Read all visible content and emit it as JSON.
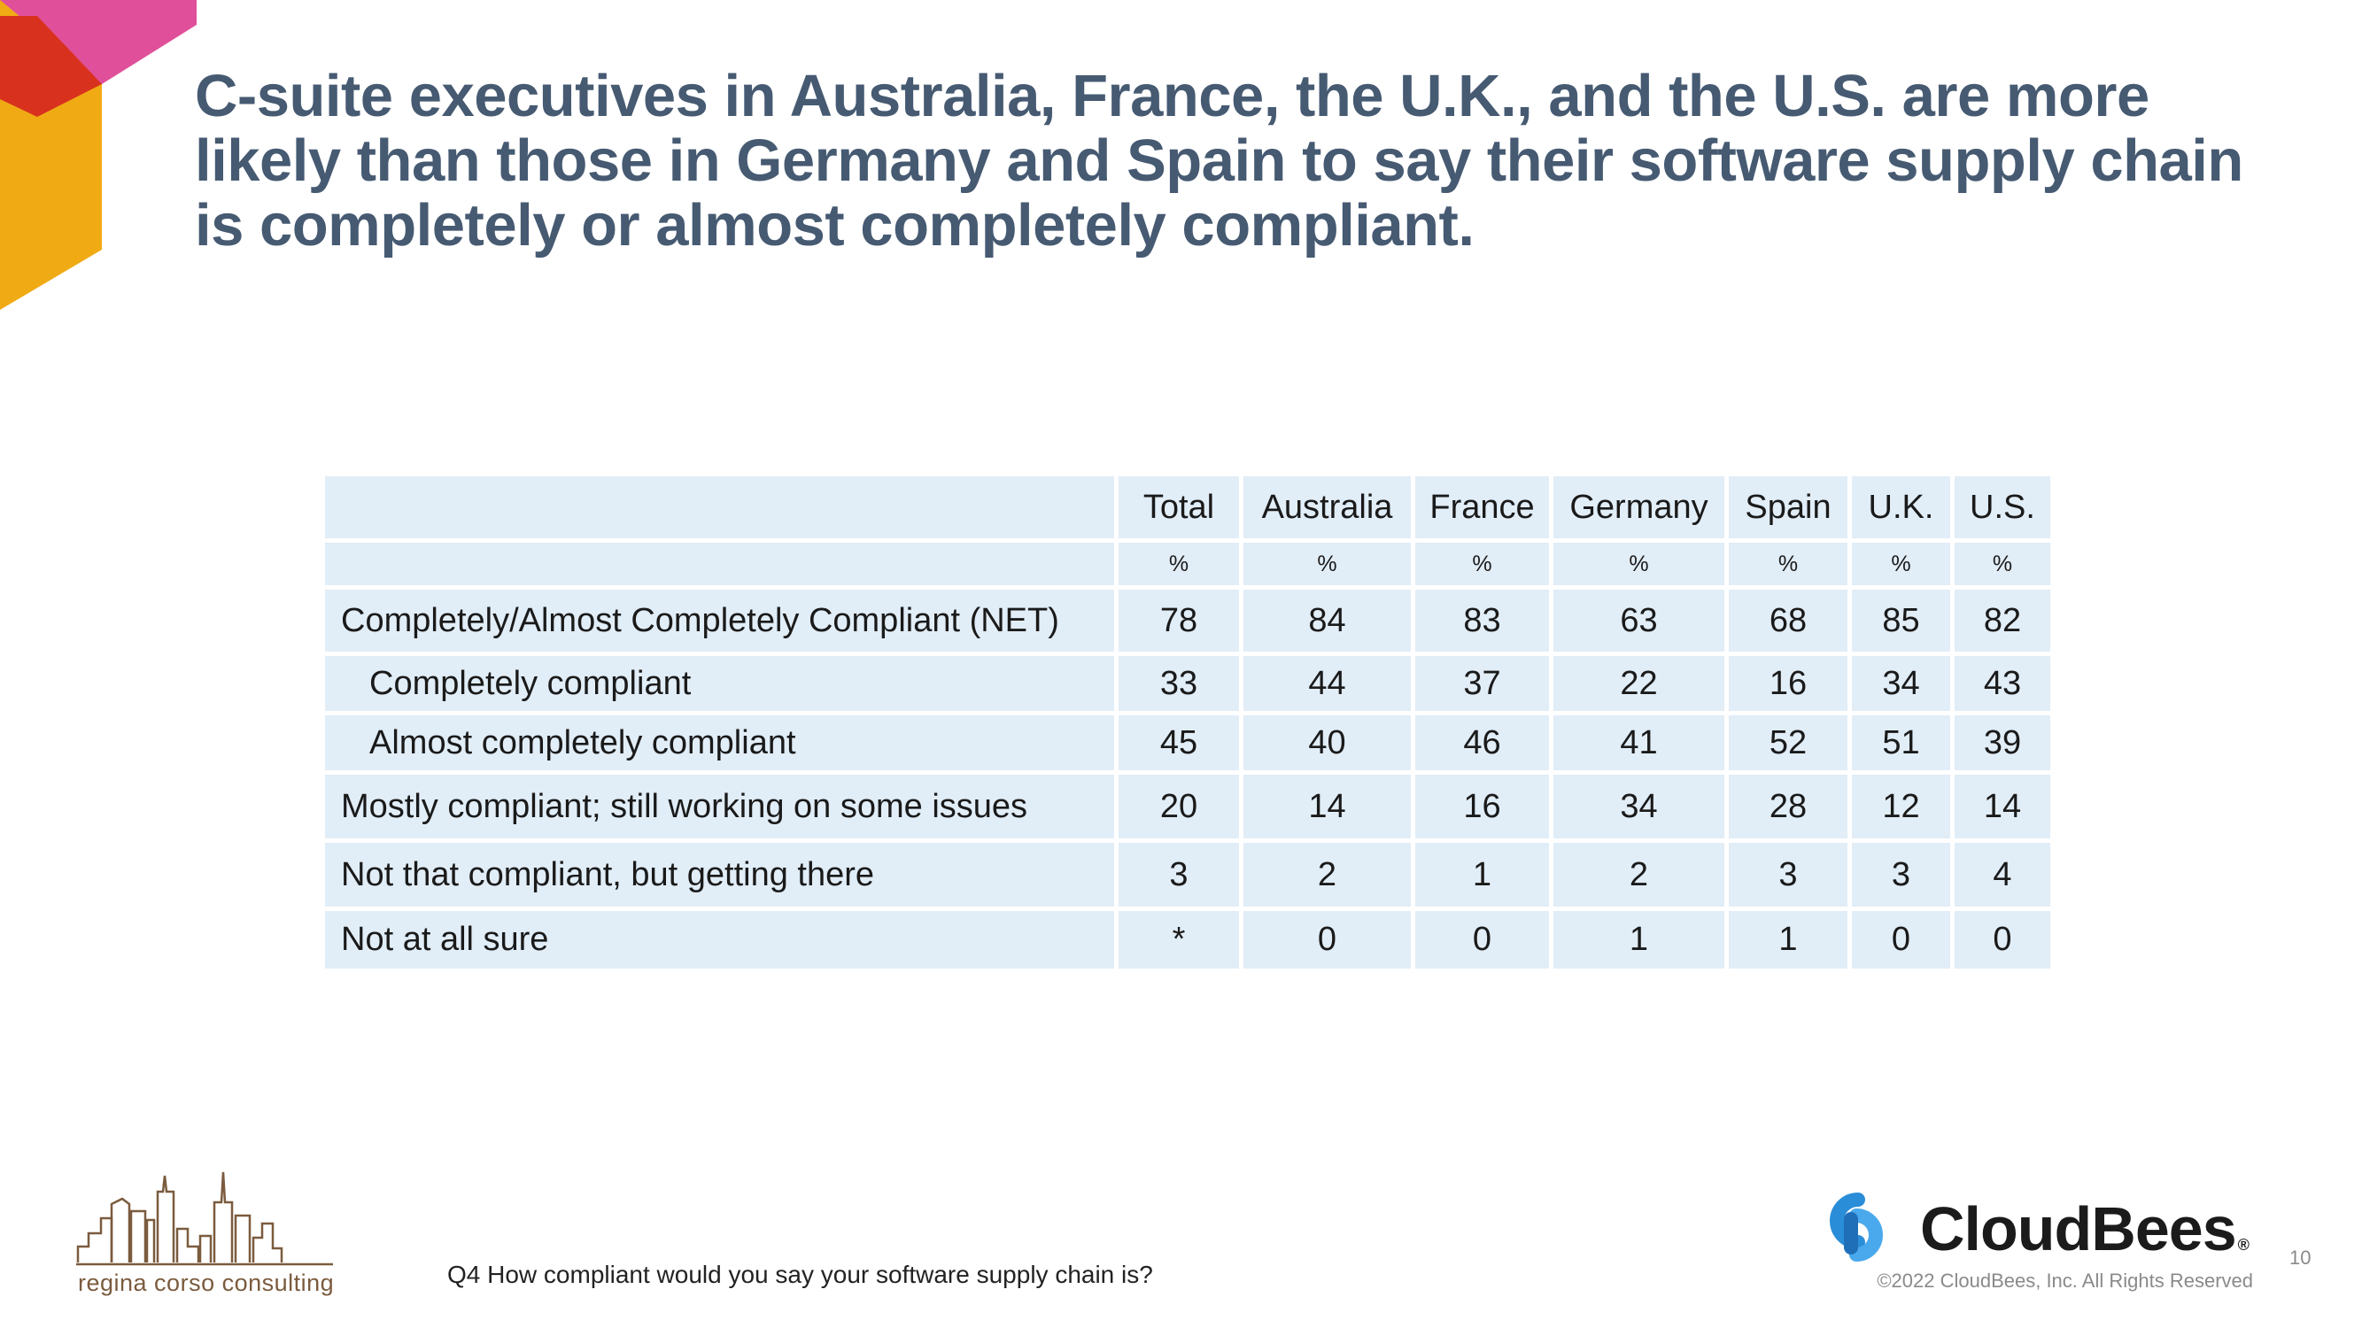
{
  "title": "C-suite executives in Australia, France, the U.K., and the U.S. are more likely than those in Germany and Spain to say their software supply chain is completely or almost completely compliant.",
  "chart_data": {
    "type": "table",
    "columns": [
      "Total",
      "Australia",
      "France",
      "Germany",
      "Spain",
      "U.K.",
      "U.S."
    ],
    "unit_row": [
      "%",
      "%",
      "%",
      "%",
      "%",
      "%",
      "%"
    ],
    "rows": [
      {
        "label": "Completely/Almost Completely Compliant (NET)",
        "values": [
          "78",
          "84",
          "83",
          "63",
          "68",
          "85",
          "82"
        ]
      },
      {
        "label": "Completely compliant",
        "values": [
          "33",
          "44",
          "37",
          "22",
          "16",
          "34",
          "43"
        ]
      },
      {
        "label": "Almost completely compliant",
        "values": [
          "45",
          "40",
          "46",
          "41",
          "52",
          "51",
          "39"
        ]
      },
      {
        "label": "Mostly compliant; still working on some issues",
        "values": [
          "20",
          "14",
          "16",
          "34",
          "28",
          "12",
          "14"
        ]
      },
      {
        "label": "Not that compliant, but getting there",
        "values": [
          "3",
          "2",
          "1",
          "2",
          "3",
          "3",
          "4"
        ]
      },
      {
        "label": "Not at all sure",
        "values": [
          "*",
          "0",
          "0",
          "1",
          "1",
          "0",
          "0"
        ]
      }
    ]
  },
  "footer": {
    "question": "Q4 How compliant would you say your software supply chain is?",
    "regina_logo_text": "regina corso consulting",
    "cloudbees_name": "CloudBees",
    "cloudbees_reg": "®",
    "copyright": "©2022 CloudBees, Inc. All Rights Reserved",
    "page_number": "10"
  },
  "colors": {
    "title": "#465a72",
    "cell_bg": "#e1edf7",
    "corner_pink": "#e0509a",
    "corner_red": "#d8321e",
    "corner_yellow": "#f0ab14",
    "cloudbees_blue": "#2a8dd8",
    "regina_brown": "#7b5b3e"
  },
  "icons": [
    "corner-shape-icon",
    "regina-skyline-icon",
    "cloudbees-mark-icon"
  ]
}
